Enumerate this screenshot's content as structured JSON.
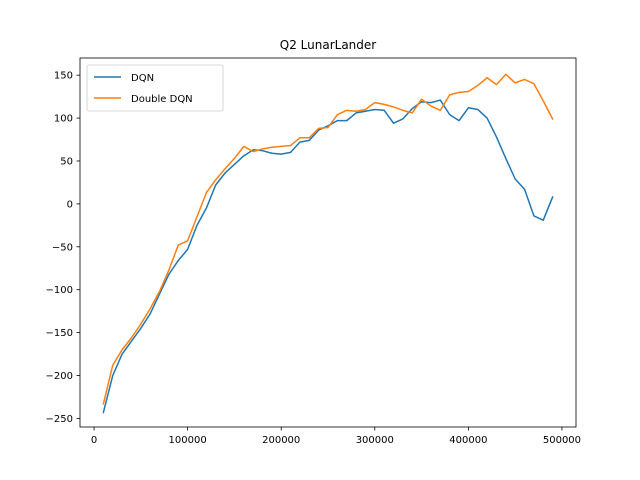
{
  "chart_data": {
    "type": "line",
    "title": "Q2 LunarLander",
    "xlabel": "",
    "ylabel": "",
    "xlim": [
      -15000,
      515000
    ],
    "ylim": [
      -260,
      170
    ],
    "xticks": [
      0,
      100000,
      200000,
      300000,
      400000,
      500000
    ],
    "xtick_labels": [
      "0",
      "100000",
      "200000",
      "300000",
      "400000",
      "500000"
    ],
    "yticks": [
      -250,
      -200,
      -150,
      -100,
      -50,
      0,
      50,
      100,
      150
    ],
    "ytick_labels": [
      "−250",
      "−200",
      "−150",
      "−100",
      "−50",
      "0",
      "50",
      "100",
      "150"
    ],
    "grid": false,
    "legend_position": "top-left",
    "x": [
      10000,
      20000,
      30000,
      40000,
      50000,
      60000,
      70000,
      80000,
      90000,
      100000,
      110000,
      120000,
      130000,
      140000,
      150000,
      160000,
      170000,
      180000,
      190000,
      200000,
      210000,
      220000,
      230000,
      240000,
      250000,
      260000,
      270000,
      280000,
      290000,
      300000,
      310000,
      320000,
      330000,
      340000,
      350000,
      360000,
      370000,
      380000,
      390000,
      400000,
      410000,
      420000,
      430000,
      440000,
      450000,
      460000,
      470000,
      480000,
      490000
    ],
    "series": [
      {
        "name": "DQN",
        "color": "#1f77b4",
        "values": [
          -243,
          -200,
          -175,
          -160,
          -145,
          -128,
          -105,
          -82,
          -66,
          -53,
          -25,
          -5,
          22,
          36,
          46,
          56,
          63,
          62,
          59,
          58,
          60,
          72,
          74,
          86,
          91,
          97,
          97,
          106,
          108,
          110,
          109,
          94,
          99,
          111,
          119,
          118,
          121,
          104,
          97,
          112,
          110,
          100,
          78,
          53,
          29,
          17,
          -14,
          -19,
          8
        ]
      },
      {
        "name": "Double DQN",
        "color": "#ff7f0e",
        "values": [
          -233,
          -188,
          -170,
          -156,
          -140,
          -122,
          -102,
          -77,
          -48,
          -43,
          -15,
          13,
          28,
          41,
          53,
          67,
          61,
          64,
          66,
          67,
          68,
          77,
          77,
          88,
          89,
          104,
          109,
          108,
          110,
          118,
          116,
          113,
          109,
          106,
          122,
          114,
          109,
          127,
          130,
          131,
          138,
          147,
          139,
          151,
          141,
          145,
          140,
          120,
          99
        ]
      }
    ]
  }
}
